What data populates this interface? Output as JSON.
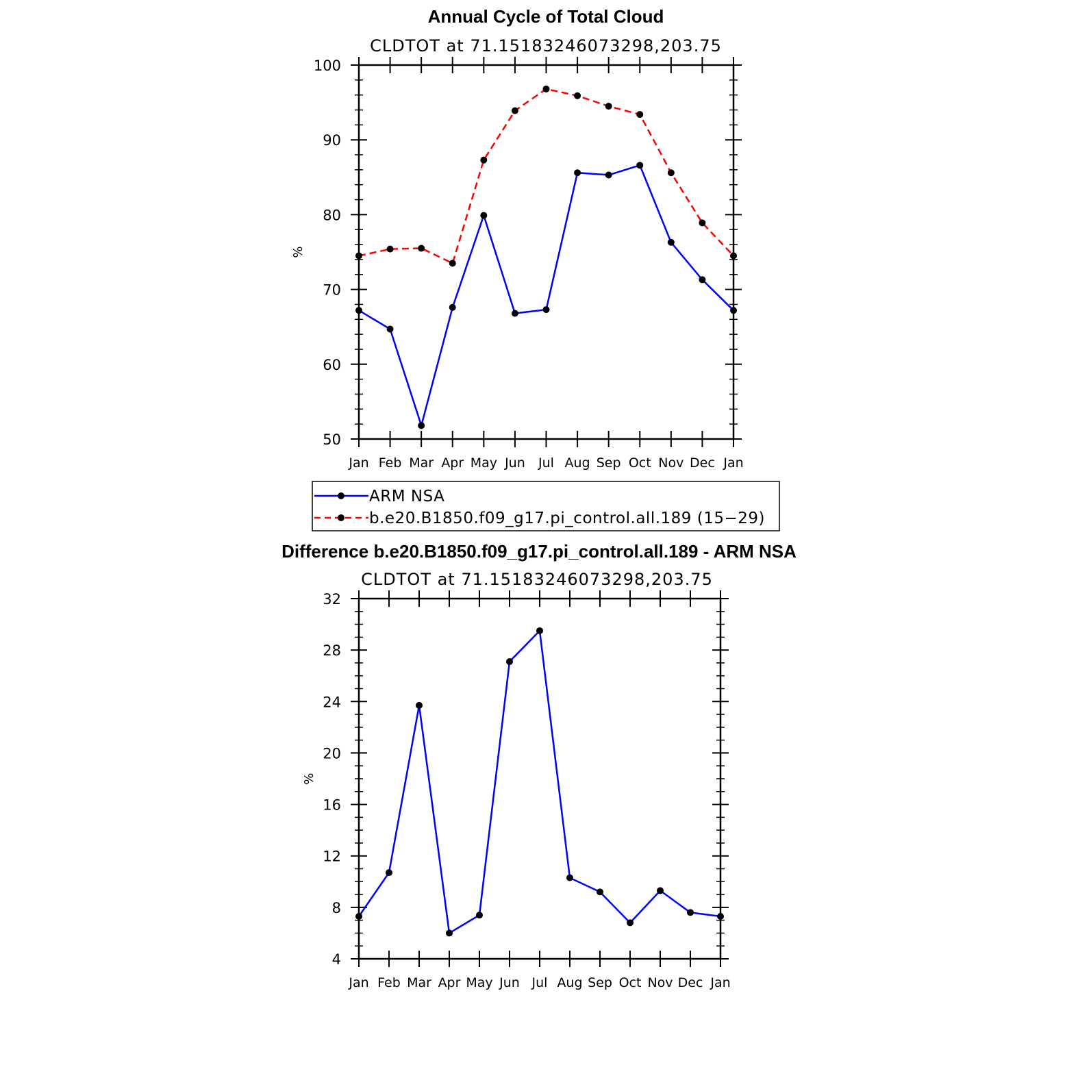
{
  "chart_data": [
    {
      "type": "line",
      "title": "Annual Cycle of Total Cloud",
      "subtitle": "CLDTOT at 71.15183246073298,203.75",
      "ylabel": "%",
      "xlabel": "",
      "categories": [
        "Jan",
        "Feb",
        "Mar",
        "Apr",
        "May",
        "Jun",
        "Jul",
        "Aug",
        "Sep",
        "Oct",
        "Nov",
        "Dec",
        "Jan"
      ],
      "ylim": [
        50,
        100
      ],
      "yticks": [
        "50",
        "60",
        "70",
        "80",
        "90",
        "100"
      ],
      "grid": false,
      "legend_position": "below",
      "series": [
        {
          "name": "ARM NSA",
          "color": "#0000ff",
          "dash": "solid",
          "values": [
            67.2,
            64.7,
            51.8,
            67.6,
            79.9,
            66.8,
            67.3,
            85.6,
            85.3,
            86.6,
            76.3,
            71.3,
            67.2
          ]
        },
        {
          "name": "b.e20.B1850.f09_g17.pi_control.all.189 (15−29)",
          "color": "#ff0000",
          "dash": "dashed",
          "values": [
            74.5,
            75.4,
            75.5,
            73.5,
            87.3,
            93.9,
            96.8,
            95.9,
            94.5,
            93.4,
            85.6,
            78.9,
            74.5
          ]
        }
      ]
    },
    {
      "type": "line",
      "title": "Difference b.e20.B1850.f09_g17.pi_control.all.189 - ARM NSA",
      "subtitle": "CLDTOT at 71.15183246073298,203.75",
      "ylabel": "%",
      "xlabel": "",
      "categories": [
        "Jan",
        "Feb",
        "Mar",
        "Apr",
        "May",
        "Jun",
        "Jul",
        "Aug",
        "Sep",
        "Oct",
        "Nov",
        "Dec",
        "Jan"
      ],
      "ylim": [
        4,
        32
      ],
      "yticks": [
        "4",
        "8",
        "12",
        "16",
        "20",
        "24",
        "28",
        "32"
      ],
      "grid": false,
      "series": [
        {
          "color": "#0000ff",
          "dash": "solid",
          "values": [
            7.3,
            10.7,
            23.7,
            6.0,
            7.4,
            27.1,
            29.5,
            10.3,
            9.2,
            6.8,
            9.3,
            7.6,
            7.3
          ]
        }
      ]
    }
  ]
}
